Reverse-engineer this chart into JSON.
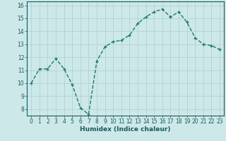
{
  "x": [
    0,
    1,
    2,
    3,
    4,
    5,
    6,
    7,
    8,
    9,
    10,
    11,
    12,
    13,
    14,
    15,
    16,
    17,
    18,
    19,
    20,
    21,
    22,
    23
  ],
  "y": [
    10.0,
    11.1,
    11.1,
    11.9,
    11.1,
    9.9,
    8.1,
    7.6,
    11.7,
    12.8,
    13.2,
    13.3,
    13.7,
    14.6,
    15.1,
    15.5,
    15.7,
    15.1,
    15.5,
    14.7,
    13.5,
    13.0,
    12.9,
    12.6
  ],
  "line_color": "#1a7a6e",
  "bg_color": "#cce8e8",
  "grid_color": "#b8d4d4",
  "xlabel": "Humidex (Indice chaleur)",
  "ylim_min": 7.5,
  "ylim_max": 16.3,
  "xlim_min": -0.5,
  "xlim_max": 23.5,
  "yticks": [
    8,
    9,
    10,
    11,
    12,
    13,
    14,
    15,
    16
  ],
  "xticks": [
    0,
    1,
    2,
    3,
    4,
    5,
    6,
    7,
    8,
    9,
    10,
    11,
    12,
    13,
    14,
    15,
    16,
    17,
    18,
    19,
    20,
    21,
    22,
    23
  ]
}
